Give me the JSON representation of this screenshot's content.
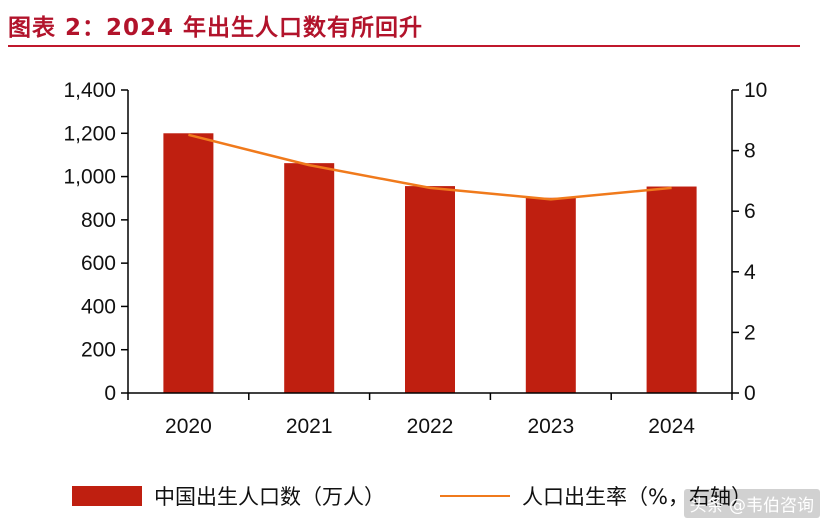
{
  "title": "图表 2：2024 年出生人口数有所回升",
  "chart_data": {
    "type": "bar",
    "categories": [
      "2020",
      "2021",
      "2022",
      "2023",
      "2024"
    ],
    "series": [
      {
        "name": "中国出生人口数（万人）",
        "type": "bar",
        "axis": "left",
        "color": "#bf1f10",
        "values": [
          1200,
          1062,
          956,
          902,
          954
        ]
      },
      {
        "name": "人口出生率（%，右轴）",
        "type": "line",
        "axis": "right",
        "color": "#f07a1c",
        "values": [
          8.52,
          7.52,
          6.77,
          6.39,
          6.77
        ]
      }
    ],
    "ylim": [
      0,
      1400
    ],
    "y_ticks": [
      "0",
      "200",
      "400",
      "600",
      "800",
      "1,000",
      "1,200",
      "1,400"
    ],
    "y2lim": [
      0,
      10
    ],
    "y2_ticks": [
      "0",
      "2",
      "4",
      "6",
      "8",
      "10"
    ],
    "grid": false,
    "legend_position": "bottom"
  },
  "legend": {
    "bar_label": "中国出生人口数（万人）",
    "line_label": "人口出生率（%，右轴）"
  },
  "watermark": "头条 @韦伯咨询"
}
